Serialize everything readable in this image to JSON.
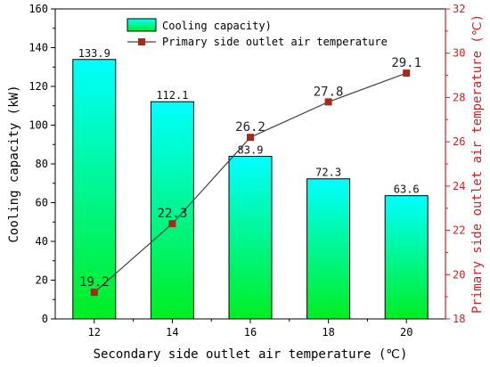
{
  "chart_data": {
    "type": "bar+line",
    "x": [
      12,
      14,
      16,
      18,
      20
    ],
    "xlabel": "Secondary side outlet air temperature (℃)",
    "ylabel_left": "Cooling capacity (kW)",
    "ylabel_right": "Primary side outlet air temperature (℃)",
    "ylim_left": [
      0,
      160
    ],
    "ylim_right": [
      18,
      32
    ],
    "xlim": [
      11,
      21
    ],
    "yticks_left": [
      0,
      20,
      40,
      60,
      80,
      100,
      120,
      140,
      160
    ],
    "yticks_right": [
      18,
      20,
      22,
      24,
      26,
      28,
      30,
      32
    ],
    "grid": false,
    "legend_placement": "top-center",
    "series": [
      {
        "name": "Cooling capacity)",
        "type": "bar",
        "axis": "left",
        "values": [
          133.9,
          112.1,
          83.9,
          72.3,
          63.6
        ],
        "labels": [
          "133.9",
          "112.1",
          "83.9",
          "72.3",
          "63.6"
        ],
        "color_top": "#00ffff",
        "color_bottom": "#00ee22"
      },
      {
        "name": "Primary side outlet air temperature",
        "type": "line",
        "axis": "right",
        "values": [
          19.2,
          22.3,
          26.2,
          27.8,
          29.1
        ],
        "labels": [
          "19.2",
          "22.3",
          "26.2",
          "27.8",
          "29.1"
        ],
        "line_color": "#444444",
        "marker_color": "#a52a1a"
      }
    ],
    "right_axis_color": "#cc2222"
  }
}
